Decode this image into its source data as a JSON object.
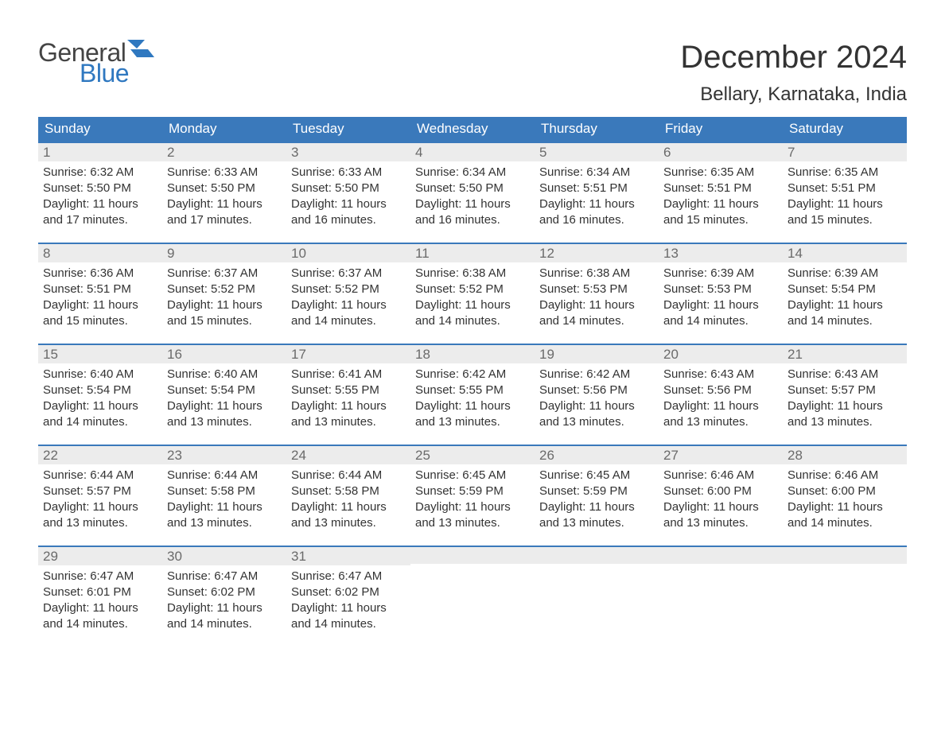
{
  "brand": {
    "word1": "General",
    "word2": "Blue"
  },
  "title": "December 2024",
  "location": "Bellary, Karnataka, India",
  "colors": {
    "header_bg": "#3a79bb",
    "header_text": "#ffffff",
    "daynum_bg": "#ececec",
    "daynum_border": "#3a79bb",
    "daynum_text": "#6a6a6a",
    "body_text": "#333333",
    "brand_gray": "#444444",
    "brand_blue": "#2f78c0",
    "page_bg": "#ffffff"
  },
  "typography": {
    "title_fontsize": 40,
    "location_fontsize": 24,
    "weekday_fontsize": 17,
    "daynum_fontsize": 17,
    "body_fontsize": 15,
    "logo_fontsize": 32
  },
  "weekdays": [
    "Sunday",
    "Monday",
    "Tuesday",
    "Wednesday",
    "Thursday",
    "Friday",
    "Saturday"
  ],
  "weeks": [
    [
      {
        "num": "1",
        "sunrise": "Sunrise: 6:32 AM",
        "sunset": "Sunset: 5:50 PM",
        "daylight1": "Daylight: 11 hours",
        "daylight2": "and 17 minutes."
      },
      {
        "num": "2",
        "sunrise": "Sunrise: 6:33 AM",
        "sunset": "Sunset: 5:50 PM",
        "daylight1": "Daylight: 11 hours",
        "daylight2": "and 17 minutes."
      },
      {
        "num": "3",
        "sunrise": "Sunrise: 6:33 AM",
        "sunset": "Sunset: 5:50 PM",
        "daylight1": "Daylight: 11 hours",
        "daylight2": "and 16 minutes."
      },
      {
        "num": "4",
        "sunrise": "Sunrise: 6:34 AM",
        "sunset": "Sunset: 5:50 PM",
        "daylight1": "Daylight: 11 hours",
        "daylight2": "and 16 minutes."
      },
      {
        "num": "5",
        "sunrise": "Sunrise: 6:34 AM",
        "sunset": "Sunset: 5:51 PM",
        "daylight1": "Daylight: 11 hours",
        "daylight2": "and 16 minutes."
      },
      {
        "num": "6",
        "sunrise": "Sunrise: 6:35 AM",
        "sunset": "Sunset: 5:51 PM",
        "daylight1": "Daylight: 11 hours",
        "daylight2": "and 15 minutes."
      },
      {
        "num": "7",
        "sunrise": "Sunrise: 6:35 AM",
        "sunset": "Sunset: 5:51 PM",
        "daylight1": "Daylight: 11 hours",
        "daylight2": "and 15 minutes."
      }
    ],
    [
      {
        "num": "8",
        "sunrise": "Sunrise: 6:36 AM",
        "sunset": "Sunset: 5:51 PM",
        "daylight1": "Daylight: 11 hours",
        "daylight2": "and 15 minutes."
      },
      {
        "num": "9",
        "sunrise": "Sunrise: 6:37 AM",
        "sunset": "Sunset: 5:52 PM",
        "daylight1": "Daylight: 11 hours",
        "daylight2": "and 15 minutes."
      },
      {
        "num": "10",
        "sunrise": "Sunrise: 6:37 AM",
        "sunset": "Sunset: 5:52 PM",
        "daylight1": "Daylight: 11 hours",
        "daylight2": "and 14 minutes."
      },
      {
        "num": "11",
        "sunrise": "Sunrise: 6:38 AM",
        "sunset": "Sunset: 5:52 PM",
        "daylight1": "Daylight: 11 hours",
        "daylight2": "and 14 minutes."
      },
      {
        "num": "12",
        "sunrise": "Sunrise: 6:38 AM",
        "sunset": "Sunset: 5:53 PM",
        "daylight1": "Daylight: 11 hours",
        "daylight2": "and 14 minutes."
      },
      {
        "num": "13",
        "sunrise": "Sunrise: 6:39 AM",
        "sunset": "Sunset: 5:53 PM",
        "daylight1": "Daylight: 11 hours",
        "daylight2": "and 14 minutes."
      },
      {
        "num": "14",
        "sunrise": "Sunrise: 6:39 AM",
        "sunset": "Sunset: 5:54 PM",
        "daylight1": "Daylight: 11 hours",
        "daylight2": "and 14 minutes."
      }
    ],
    [
      {
        "num": "15",
        "sunrise": "Sunrise: 6:40 AM",
        "sunset": "Sunset: 5:54 PM",
        "daylight1": "Daylight: 11 hours",
        "daylight2": "and 14 minutes."
      },
      {
        "num": "16",
        "sunrise": "Sunrise: 6:40 AM",
        "sunset": "Sunset: 5:54 PM",
        "daylight1": "Daylight: 11 hours",
        "daylight2": "and 13 minutes."
      },
      {
        "num": "17",
        "sunrise": "Sunrise: 6:41 AM",
        "sunset": "Sunset: 5:55 PM",
        "daylight1": "Daylight: 11 hours",
        "daylight2": "and 13 minutes."
      },
      {
        "num": "18",
        "sunrise": "Sunrise: 6:42 AM",
        "sunset": "Sunset: 5:55 PM",
        "daylight1": "Daylight: 11 hours",
        "daylight2": "and 13 minutes."
      },
      {
        "num": "19",
        "sunrise": "Sunrise: 6:42 AM",
        "sunset": "Sunset: 5:56 PM",
        "daylight1": "Daylight: 11 hours",
        "daylight2": "and 13 minutes."
      },
      {
        "num": "20",
        "sunrise": "Sunrise: 6:43 AM",
        "sunset": "Sunset: 5:56 PM",
        "daylight1": "Daylight: 11 hours",
        "daylight2": "and 13 minutes."
      },
      {
        "num": "21",
        "sunrise": "Sunrise: 6:43 AM",
        "sunset": "Sunset: 5:57 PM",
        "daylight1": "Daylight: 11 hours",
        "daylight2": "and 13 minutes."
      }
    ],
    [
      {
        "num": "22",
        "sunrise": "Sunrise: 6:44 AM",
        "sunset": "Sunset: 5:57 PM",
        "daylight1": "Daylight: 11 hours",
        "daylight2": "and 13 minutes."
      },
      {
        "num": "23",
        "sunrise": "Sunrise: 6:44 AM",
        "sunset": "Sunset: 5:58 PM",
        "daylight1": "Daylight: 11 hours",
        "daylight2": "and 13 minutes."
      },
      {
        "num": "24",
        "sunrise": "Sunrise: 6:44 AM",
        "sunset": "Sunset: 5:58 PM",
        "daylight1": "Daylight: 11 hours",
        "daylight2": "and 13 minutes."
      },
      {
        "num": "25",
        "sunrise": "Sunrise: 6:45 AM",
        "sunset": "Sunset: 5:59 PM",
        "daylight1": "Daylight: 11 hours",
        "daylight2": "and 13 minutes."
      },
      {
        "num": "26",
        "sunrise": "Sunrise: 6:45 AM",
        "sunset": "Sunset: 5:59 PM",
        "daylight1": "Daylight: 11 hours",
        "daylight2": "and 13 minutes."
      },
      {
        "num": "27",
        "sunrise": "Sunrise: 6:46 AM",
        "sunset": "Sunset: 6:00 PM",
        "daylight1": "Daylight: 11 hours",
        "daylight2": "and 13 minutes."
      },
      {
        "num": "28",
        "sunrise": "Sunrise: 6:46 AM",
        "sunset": "Sunset: 6:00 PM",
        "daylight1": "Daylight: 11 hours",
        "daylight2": "and 14 minutes."
      }
    ],
    [
      {
        "num": "29",
        "sunrise": "Sunrise: 6:47 AM",
        "sunset": "Sunset: 6:01 PM",
        "daylight1": "Daylight: 11 hours",
        "daylight2": "and 14 minutes."
      },
      {
        "num": "30",
        "sunrise": "Sunrise: 6:47 AM",
        "sunset": "Sunset: 6:02 PM",
        "daylight1": "Daylight: 11 hours",
        "daylight2": "and 14 minutes."
      },
      {
        "num": "31",
        "sunrise": "Sunrise: 6:47 AM",
        "sunset": "Sunset: 6:02 PM",
        "daylight1": "Daylight: 11 hours",
        "daylight2": "and 14 minutes."
      },
      null,
      null,
      null,
      null
    ]
  ]
}
